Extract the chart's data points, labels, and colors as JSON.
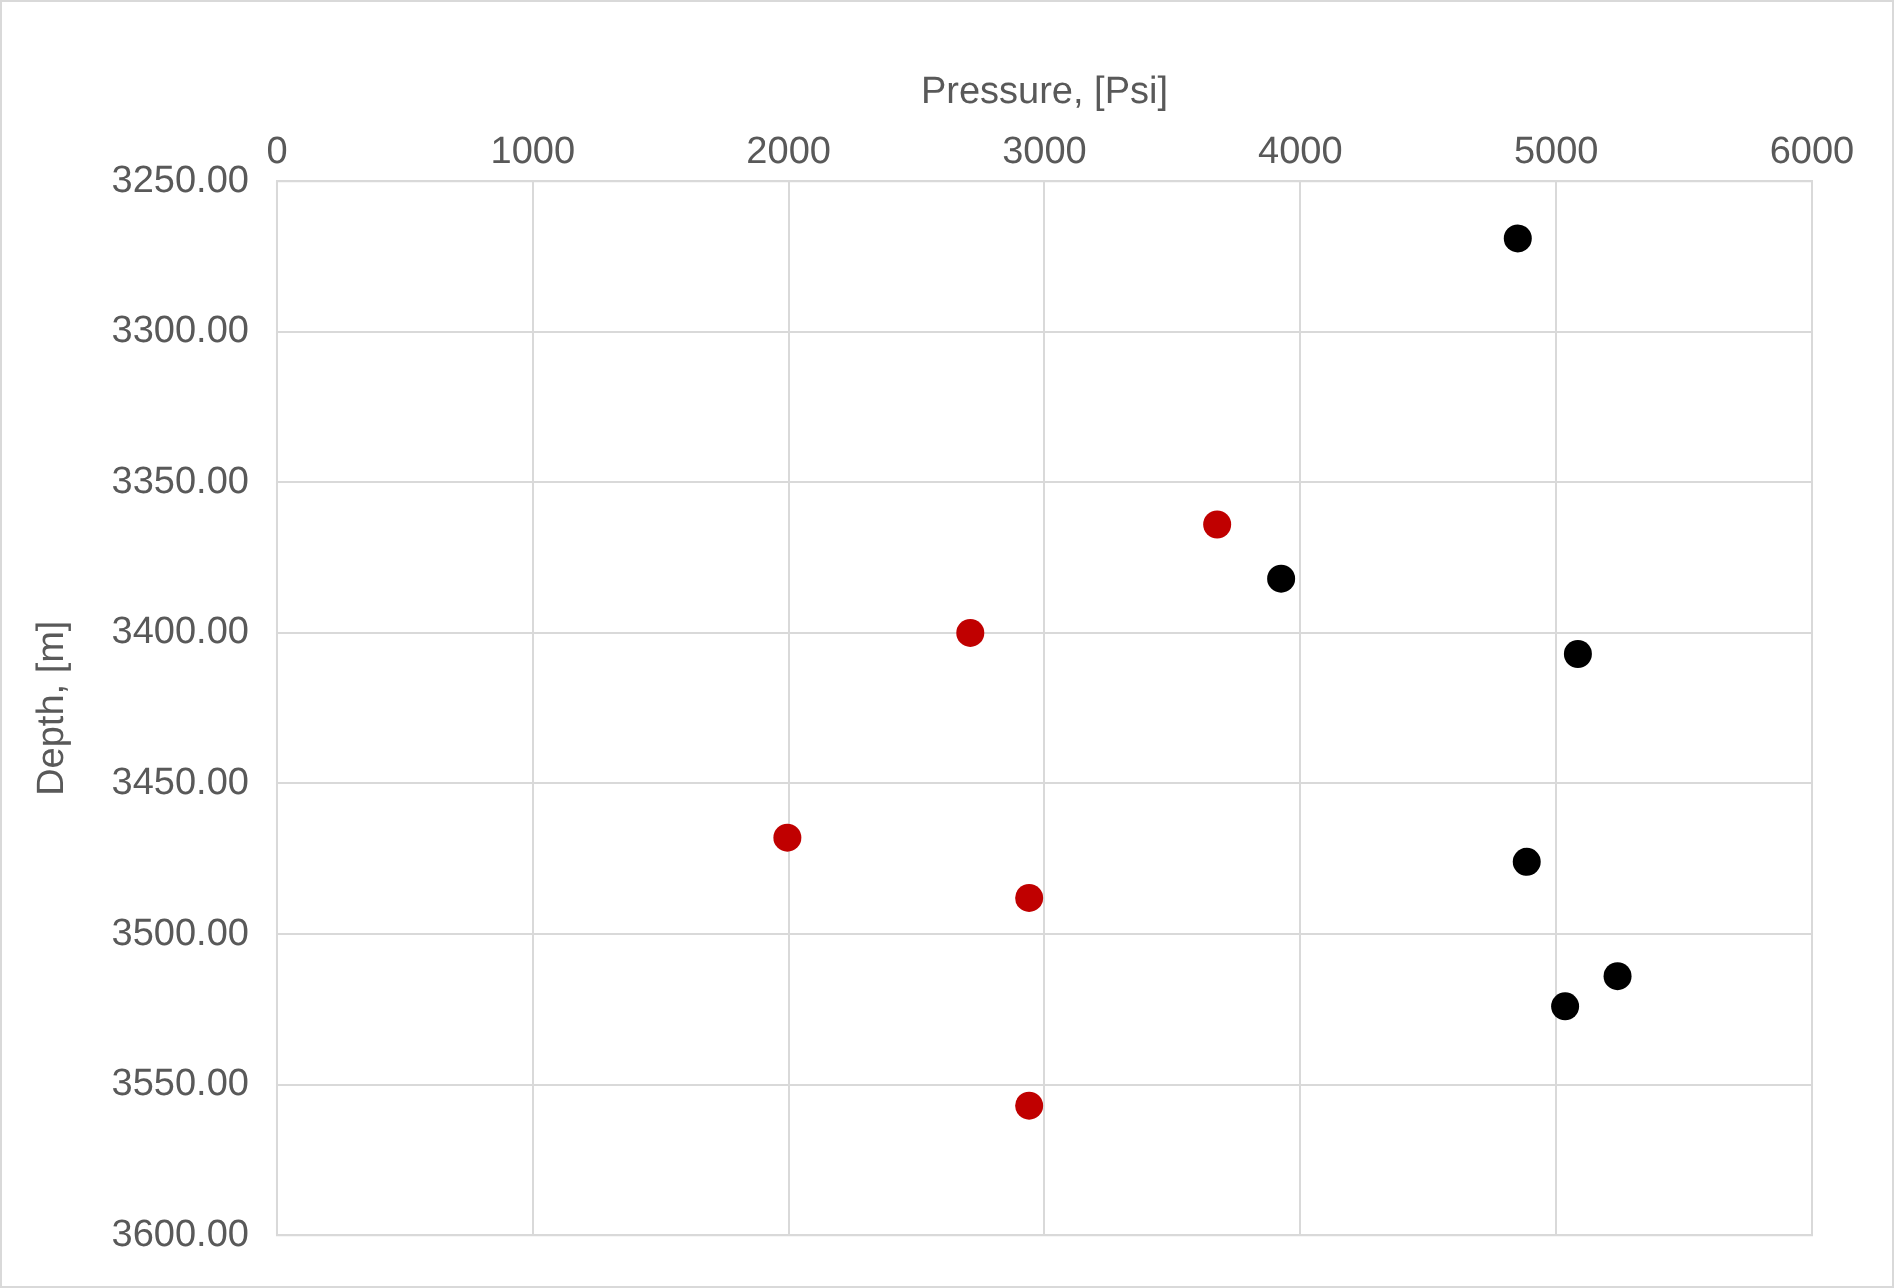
{
  "chart_data": {
    "type": "scatter",
    "xlabel": "Pressure, [Psi]",
    "ylabel": "Depth, [m]",
    "xlim": [
      0,
      6000
    ],
    "xticks": [
      0,
      1000,
      2000,
      3000,
      4000,
      5000,
      6000
    ],
    "ylim": [
      3600,
      3250
    ],
    "yticks": [
      {
        "value": 3250,
        "label": "3250.00"
      },
      {
        "value": 3300,
        "label": "3300.00"
      },
      {
        "value": 3350,
        "label": "3350.00"
      },
      {
        "value": 3400,
        "label": "3400.00"
      },
      {
        "value": 3450,
        "label": "3450.00"
      },
      {
        "value": 3500,
        "label": "3500.00"
      },
      {
        "value": 3550,
        "label": "3550.00"
      },
      {
        "value": 3600,
        "label": "3600.00"
      }
    ],
    "grid": true,
    "legend": false,
    "marker": "circle",
    "series": [
      {
        "color": "#000000",
        "x": [
          4850,
          3925,
          5085,
          4885,
          5240,
          5035
        ],
        "values": [
          3269,
          3382,
          3407,
          3476,
          3514,
          3524
        ]
      },
      {
        "color": "#c00000",
        "x": [
          3675,
          2710,
          1995,
          2940,
          2940
        ],
        "values": [
          3364,
          3400,
          3468,
          3488,
          3557
        ]
      }
    ]
  }
}
